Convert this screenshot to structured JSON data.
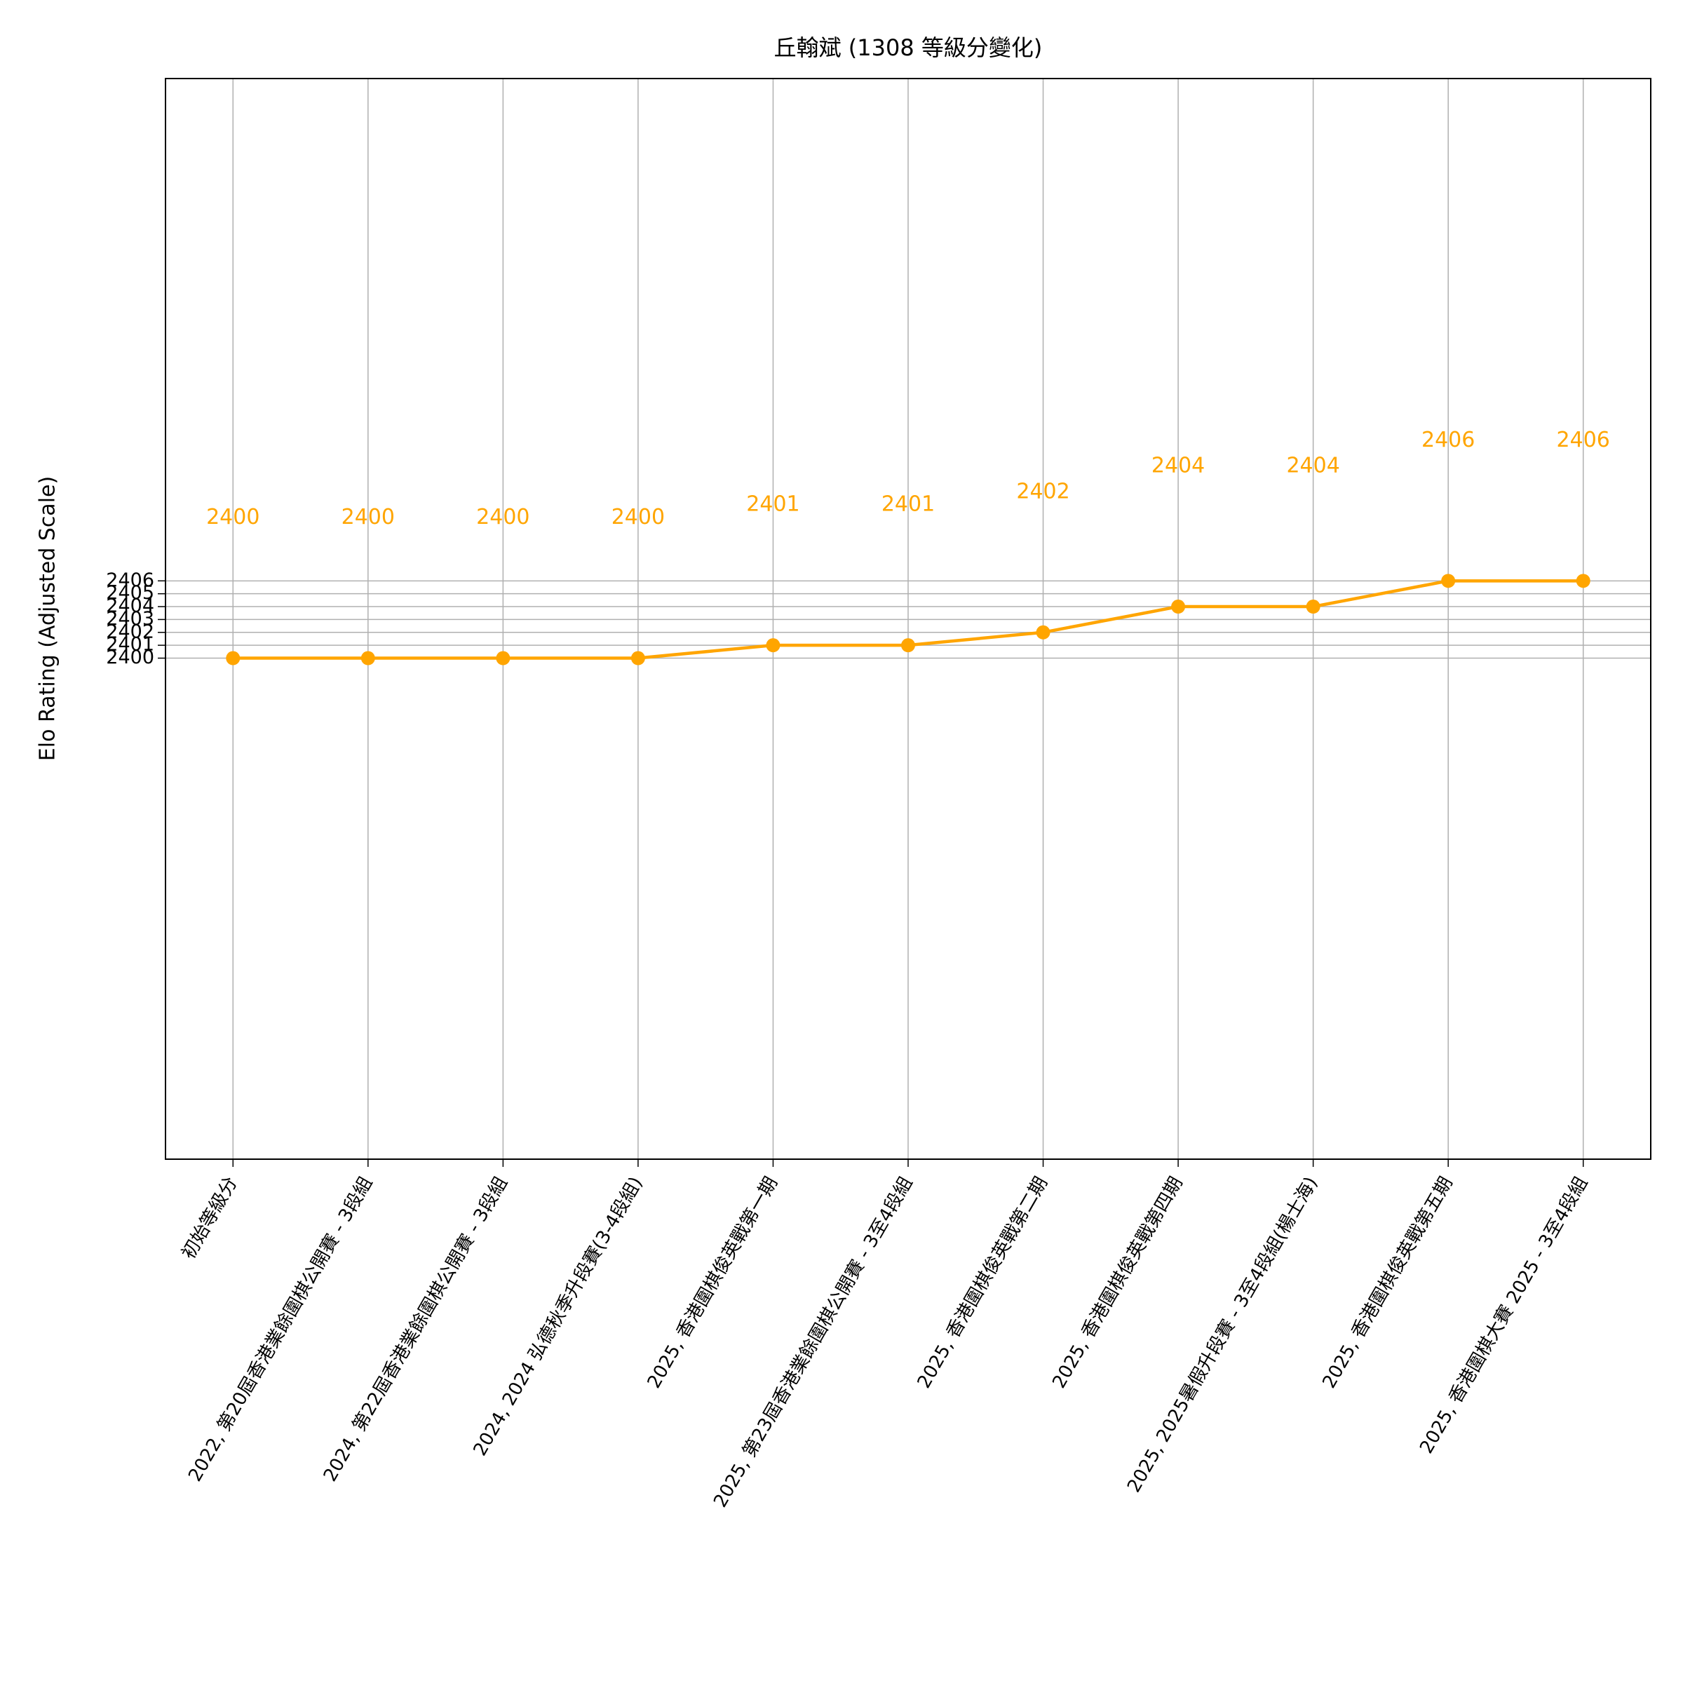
{
  "chart_data": {
    "type": "line",
    "title": "丘翰斌 (1308 等級分變化)",
    "y_label": "Elo Rating (Adjusted Scale)",
    "categories": [
      "初始等級分",
      "2022, 第20屆香港業餘圍棋公開賽 - 3段組",
      "2024, 第22屆香港業餘圍棋公開賽 - 3段組",
      "2024, 2024 弘德秋季升段賽(3-4段組)",
      "2025, 香港圍棋俊英戰第一期",
      "2025, 第23屆香港業餘圍棋公開賽 - 3至4段組",
      "2025, 香港圍棋俊英戰第二期",
      "2025, 香港圍棋俊英戰第四期",
      "2025, 2025暑假升段賽 - 3至4段組(楊士海)",
      "2025, 香港圍棋俊英戰第五期",
      "2025, 香港圍棋大賽 2025 - 3至4段組"
    ],
    "values": [
      2400,
      2400,
      2400,
      2400,
      2401,
      2401,
      2402,
      2404,
      2404,
      2406,
      2406
    ],
    "color": "#ffa500",
    "ylim": [
      2361.1,
      2445
    ],
    "yticks": [
      2400,
      2401,
      2402,
      2403,
      2404,
      2405,
      2406
    ],
    "grid": true
  }
}
